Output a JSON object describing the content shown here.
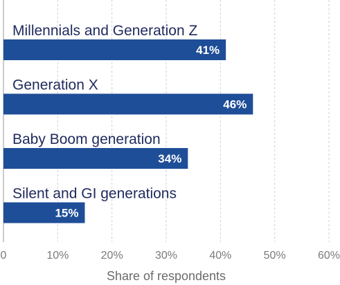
{
  "chart_data": {
    "type": "bar",
    "orientation": "horizontal",
    "categories": [
      "Millennials and Generation Z",
      "Generation X",
      "Baby Boom generation",
      "Silent and GI generations"
    ],
    "values": [
      41,
      46,
      34,
      15
    ],
    "value_labels": [
      "41%",
      "46%",
      "34%",
      "15%"
    ],
    "xticks": [
      0,
      10,
      20,
      30,
      40,
      50,
      60
    ],
    "xtick_labels": [
      "0",
      "10%",
      "20%",
      "30%",
      "40%",
      "50%",
      "60%"
    ],
    "xlim": [
      0,
      60
    ],
    "xlabel": "Share of respondents",
    "grid": true,
    "legend": false,
    "bar_color": "#1f4e98"
  }
}
